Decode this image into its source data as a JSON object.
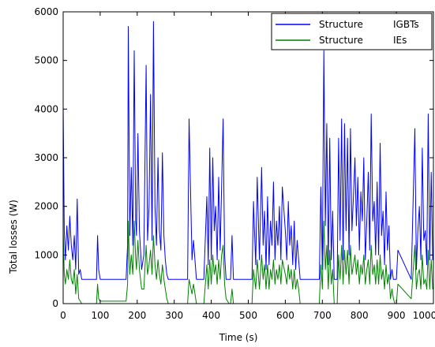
{
  "chart_data": {
    "type": "line",
    "title": "",
    "xlabel": "Time (s)",
    "ylabel": "Total losses (W)",
    "xlim": [
      0,
      1000
    ],
    "ylim": [
      0,
      6000
    ],
    "xticks": [
      0,
      100,
      200,
      300,
      400,
      500,
      600,
      700,
      800,
      900,
      1000
    ],
    "yticks": [
      0,
      1000,
      2000,
      3000,
      4000,
      5000,
      6000
    ],
    "grid": false,
    "legend_position": "top-right",
    "legend": [
      {
        "structure": "Structure",
        "device": "IGBTs",
        "color": "#0000ff"
      },
      {
        "structure": "Structure",
        "device": "IEs",
        "color": "#008000"
      }
    ],
    "series": [
      {
        "name": "Structure IGBTs",
        "color": "#0000ff",
        "x": [
          0,
          3,
          6,
          10,
          14,
          18,
          22,
          26,
          30,
          34,
          38,
          42,
          46,
          50,
          90,
          93,
          96,
          100,
          104,
          170,
          174,
          176,
          180,
          184,
          188,
          192,
          196,
          198,
          202,
          206,
          212,
          218,
          224,
          228,
          232,
          236,
          240,
          244,
          248,
          252,
          256,
          260,
          264,
          268,
          272,
          276,
          280,
          284,
          290,
          300,
          320,
          336,
          340,
          348,
          352,
          360,
          372,
          380,
          388,
          392,
          396,
          400,
          404,
          408,
          412,
          416,
          420,
          424,
          428,
          432,
          436,
          440,
          448,
          452,
          456,
          460,
          480,
          510,
          514,
          520,
          524,
          530,
          536,
          540,
          544,
          548,
          552,
          556,
          560,
          564,
          568,
          572,
          576,
          580,
          584,
          588,
          592,
          600,
          604,
          608,
          612,
          616,
          620,
          624,
          628,
          632,
          636,
          640,
          660,
          688,
          692,
          696,
          700,
          704,
          708,
          712,
          716,
          720,
          724,
          728,
          732,
          736,
          740,
          744,
          748,
          752,
          756,
          760,
          764,
          768,
          772,
          776,
          780,
          784,
          788,
          792,
          796,
          800,
          804,
          808,
          812,
          816,
          820,
          824,
          828,
          832,
          836,
          840,
          844,
          848,
          852,
          856,
          860,
          864,
          868,
          872,
          876,
          880,
          884,
          888,
          892,
          896,
          900,
          904,
          940,
          950,
          954,
          958,
          962,
          966,
          970,
          974,
          978,
          982,
          986,
          990,
          994,
          998,
          1000
        ],
        "values": [
          4100,
          1500,
          900,
          1600,
          1100,
          1800,
          1200,
          900,
          1400,
          700,
          2150,
          600,
          700,
          500,
          500,
          1400,
          700,
          500,
          500,
          500,
          1200,
          5700,
          1400,
          2800,
          1200,
          5200,
          1700,
          1400,
          3500,
          1500,
          700,
          1000,
          4900,
          1300,
          2000,
          4300,
          1300,
          5800,
          2000,
          1200,
          3000,
          1500,
          1100,
          3100,
          1400,
          900,
          600,
          500,
          500,
          500,
          500,
          500,
          3800,
          900,
          1300,
          500,
          500,
          500,
          2200,
          800,
          3200,
          900,
          3000,
          1500,
          2000,
          900,
          2600,
          1100,
          2400,
          3800,
          1000,
          500,
          500,
          500,
          1400,
          500,
          500,
          500,
          2100,
          800,
          2600,
          900,
          2800,
          1200,
          1900,
          700,
          2200,
          800,
          1700,
          1200,
          2500,
          900,
          1700,
          1200,
          2000,
          900,
          2400,
          1500,
          900,
          2100,
          1200,
          1600,
          800,
          1700,
          700,
          1300,
          900,
          500,
          500,
          500,
          500,
          2400,
          700,
          5200,
          1600,
          3700,
          800,
          3400,
          900,
          1900,
          500,
          500,
          500,
          3400,
          1300,
          3800,
          900,
          3700,
          1500,
          3400,
          1000,
          3600,
          1500,
          2200,
          3000,
          1600,
          2600,
          1100,
          2300,
          1700,
          3000,
          900,
          1700,
          2700,
          1100,
          3900,
          1700,
          2100,
          1000,
          2500,
          1000,
          3300,
          1400,
          1900,
          800,
          2300,
          1100,
          1600,
          500,
          700,
          500,
          500,
          500,
          1100,
          500,
          3600,
          700,
          1500,
          2000,
          900,
          3200,
          1300,
          1500,
          800,
          3900,
          900,
          2700,
          900,
          1000
        ]
      },
      {
        "name": "Structure IEs",
        "color": "#008000",
        "x": [
          0,
          3,
          6,
          10,
          14,
          18,
          22,
          26,
          30,
          34,
          38,
          42,
          46,
          50,
          60,
          90,
          93,
          96,
          100,
          140,
          170,
          174,
          176,
          180,
          184,
          188,
          192,
          196,
          198,
          202,
          206,
          212,
          218,
          224,
          228,
          232,
          236,
          240,
          244,
          248,
          252,
          256,
          260,
          264,
          268,
          272,
          276,
          280,
          284,
          290,
          300,
          336,
          340,
          348,
          352,
          360,
          372,
          380,
          388,
          392,
          396,
          400,
          404,
          408,
          412,
          416,
          420,
          424,
          428,
          432,
          436,
          440,
          448,
          452,
          456,
          460,
          480,
          510,
          514,
          520,
          524,
          530,
          536,
          540,
          544,
          548,
          552,
          556,
          560,
          564,
          568,
          572,
          576,
          580,
          584,
          588,
          592,
          600,
          604,
          608,
          612,
          616,
          620,
          624,
          628,
          632,
          636,
          640,
          660,
          688,
          692,
          696,
          700,
          704,
          708,
          712,
          716,
          720,
          724,
          728,
          732,
          736,
          740,
          744,
          748,
          752,
          756,
          760,
          764,
          768,
          772,
          776,
          780,
          784,
          788,
          792,
          796,
          800,
          804,
          808,
          812,
          816,
          820,
          824,
          828,
          832,
          836,
          840,
          844,
          848,
          852,
          856,
          860,
          864,
          868,
          872,
          876,
          880,
          884,
          888,
          892,
          896,
          900,
          904,
          940,
          950,
          954,
          958,
          962,
          966,
          970,
          974,
          978,
          982,
          986,
          990,
          994,
          998,
          1000
        ],
        "values": [
          1500,
          600,
          400,
          700,
          500,
          900,
          500,
          400,
          700,
          200,
          600,
          100,
          50,
          0,
          0,
          0,
          400,
          100,
          50,
          50,
          50,
          400,
          1700,
          600,
          1000,
          600,
          1700,
          900,
          700,
          1300,
          700,
          300,
          300,
          1200,
          600,
          800,
          1100,
          600,
          1400,
          800,
          500,
          900,
          600,
          400,
          800,
          500,
          300,
          100,
          0,
          0,
          0,
          0,
          500,
          200,
          400,
          0,
          0,
          0,
          800,
          300,
          900,
          400,
          1000,
          600,
          800,
          400,
          900,
          500,
          1000,
          1200,
          400,
          100,
          0,
          0,
          300,
          0,
          0,
          0,
          700,
          300,
          900,
          300,
          1000,
          500,
          800,
          300,
          800,
          300,
          700,
          500,
          900,
          400,
          700,
          500,
          800,
          400,
          900,
          600,
          400,
          800,
          500,
          700,
          300,
          700,
          300,
          500,
          300,
          0,
          0,
          0,
          0,
          800,
          300,
          1700,
          700,
          1200,
          300,
          1100,
          400,
          700,
          0,
          0,
          0,
          1000,
          500,
          1200,
          400,
          1100,
          600,
          1100,
          400,
          1200,
          600,
          800,
          1000,
          600,
          900,
          400,
          800,
          600,
          1000,
          400,
          700,
          900,
          400,
          1200,
          600,
          800,
          400,
          900,
          400,
          1000,
          500,
          700,
          300,
          800,
          400,
          600,
          100,
          300,
          100,
          0,
          0,
          400,
          100,
          1200,
          300,
          600,
          700,
          300,
          1000,
          400,
          500,
          300,
          1100,
          300,
          900,
          300,
          300
        ]
      }
    ]
  }
}
